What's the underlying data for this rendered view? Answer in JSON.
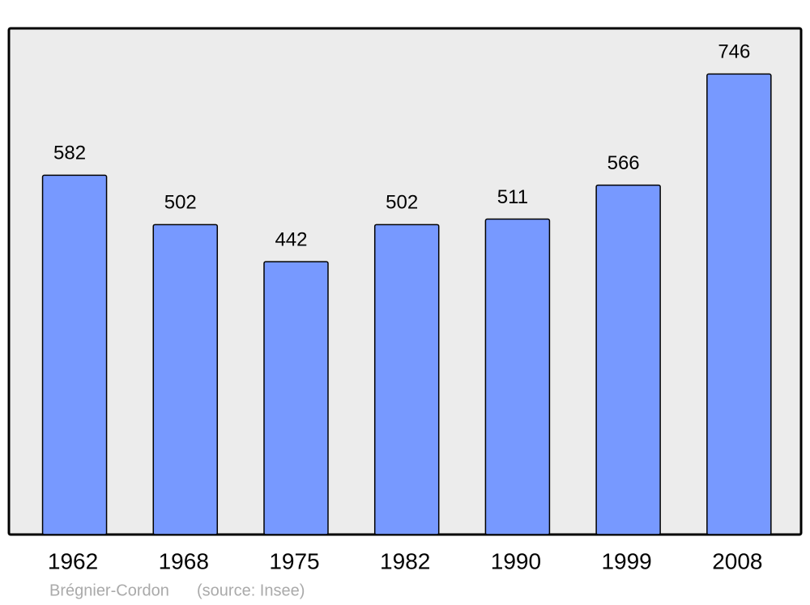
{
  "chart_data": {
    "type": "bar",
    "categories": [
      "1962",
      "1968",
      "1975",
      "1982",
      "1990",
      "1999",
      "2008"
    ],
    "values": [
      582,
      502,
      442,
      502,
      511,
      566,
      746
    ],
    "color": "#7799ff",
    "ylim": [
      0,
      820
    ],
    "place": "Brégnier-Cordon",
    "source": "(source: Insee)"
  }
}
